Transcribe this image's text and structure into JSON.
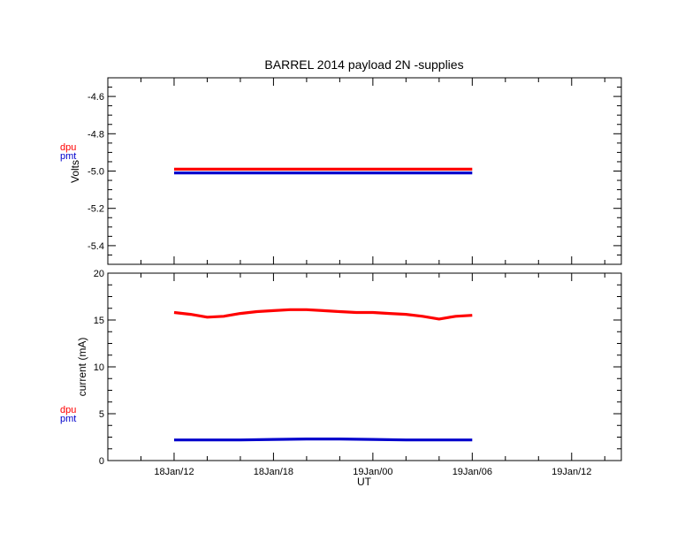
{
  "title": "BARREL 2014 payload 2N -supplies",
  "colors": {
    "dpu": "#ff0000",
    "pmt": "#0000cc",
    "axes": "#000000",
    "background": "#ffffff"
  },
  "chart_data": [
    {
      "type": "line",
      "ylabel": "Volts",
      "ylim": [
        -5.5,
        -4.5
      ],
      "yticks": [
        -4.6,
        -4.8,
        -5.0,
        -5.2,
        -5.4
      ],
      "ytick_labels": [
        "-4.6",
        "-4.8",
        "-5.0",
        "-5.2",
        "-5.4"
      ],
      "xlim": [
        "18Jan 08:00",
        "19Jan 15:00"
      ],
      "xtick_labels": [],
      "grid": false,
      "legend": "left-outside",
      "series": [
        {
          "name": "dpu",
          "color": "#ff0000",
          "x": [
            "18Jan12:00",
            "18Jan14:00",
            "18Jan16:00",
            "18Jan18:00",
            "18Jan20:00",
            "18Jan22:00",
            "19Jan00:00",
            "19Jan02:00",
            "19Jan04:00",
            "19Jan06:00"
          ],
          "values": [
            -4.99,
            -4.99,
            -4.99,
            -4.99,
            -4.99,
            -4.99,
            -4.99,
            -4.99,
            -4.99,
            -4.99
          ]
        },
        {
          "name": "pmt",
          "color": "#0000cc",
          "x": [
            "18Jan12:00",
            "18Jan14:00",
            "18Jan16:00",
            "18Jan18:00",
            "18Jan20:00",
            "18Jan22:00",
            "19Jan00:00",
            "19Jan02:00",
            "19Jan04:00",
            "19Jan06:00"
          ],
          "values": [
            -5.01,
            -5.01,
            -5.01,
            -5.01,
            -5.01,
            -5.01,
            -5.01,
            -5.01,
            -5.01,
            -5.01
          ]
        }
      ]
    },
    {
      "type": "line",
      "ylabel": "current (mA)",
      "xlabel": "UT",
      "ylim": [
        0,
        20
      ],
      "yticks": [
        0,
        5,
        10,
        15,
        20
      ],
      "ytick_labels": [
        "0",
        "5",
        "10",
        "15",
        "20"
      ],
      "xlim": [
        "18Jan 08:00",
        "19Jan 15:00"
      ],
      "xtick_labels": [
        "18Jan/12",
        "18Jan/18",
        "19Jan/00",
        "19Jan/06",
        "19Jan/12"
      ],
      "grid": false,
      "legend": "left-outside",
      "series": [
        {
          "name": "dpu",
          "color": "#ff0000",
          "x": [
            "18Jan12:00",
            "18Jan13:00",
            "18Jan14:00",
            "18Jan15:00",
            "18Jan16:00",
            "18Jan17:00",
            "18Jan18:00",
            "18Jan19:00",
            "18Jan20:00",
            "18Jan21:00",
            "18Jan22:00",
            "18Jan23:00",
            "19Jan00:00",
            "19Jan01:00",
            "19Jan02:00",
            "19Jan03:00",
            "19Jan04:00",
            "19Jan05:00",
            "19Jan06:00"
          ],
          "values": [
            15.8,
            15.6,
            15.3,
            15.4,
            15.7,
            15.9,
            16.0,
            16.1,
            16.1,
            16.0,
            15.9,
            15.8,
            15.8,
            15.7,
            15.6,
            15.4,
            15.1,
            15.4,
            15.5
          ]
        },
        {
          "name": "pmt",
          "color": "#0000cc",
          "x": [
            "18Jan12:00",
            "18Jan14:00",
            "18Jan16:00",
            "18Jan18:00",
            "18Jan20:00",
            "18Jan22:00",
            "19Jan00:00",
            "19Jan02:00",
            "19Jan04:00",
            "19Jan06:00"
          ],
          "values": [
            2.2,
            2.2,
            2.2,
            2.25,
            2.3,
            2.3,
            2.25,
            2.2,
            2.2,
            2.2
          ]
        }
      ]
    }
  ]
}
